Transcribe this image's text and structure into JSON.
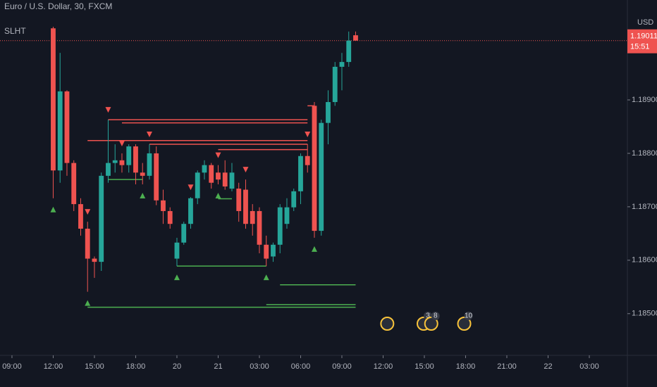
{
  "chart_data": {
    "type": "candlestick",
    "title": "Euro / U.S. Dollar, 30, FXCM",
    "indicator": "SLHT",
    "currency": "USD",
    "up_color": "#26a69a",
    "down_color": "#ef5350",
    "x": [
      6,
      7,
      8,
      9,
      10,
      11,
      12,
      13,
      14,
      15,
      16,
      17,
      18,
      19,
      20,
      21,
      22,
      23,
      24,
      25,
      26,
      27,
      28,
      29,
      30,
      31,
      32,
      33,
      34,
      35,
      36,
      37,
      38,
      39,
      40,
      41,
      42,
      43,
      44,
      45,
      46,
      47,
      48,
      49,
      50
    ],
    "open": [
      1.19034,
      1.18768,
      1.18916,
      1.18782,
      1.18705,
      1.18659,
      1.18603,
      1.18597,
      1.18758,
      1.18782,
      1.18787,
      1.18778,
      1.18813,
      1.18764,
      1.18758,
      1.188,
      1.18712,
      1.18692,
      1.18603,
      1.18633,
      1.18668,
      1.18716,
      1.18764,
      1.18778,
      1.18764,
      1.18764,
      1.18734,
      1.18734,
      1.18732,
      1.18692,
      1.18692,
      1.18629,
      1.18607,
      1.18629,
      1.18668,
      1.18699,
      1.18729,
      1.18795,
      1.18889,
      1.18655,
      1.18857,
      1.18896,
      1.18962,
      1.18971,
      1.19021
    ],
    "high": [
      1.19037,
      1.18988,
      1.18918,
      1.18787,
      1.18716,
      1.18672,
      1.18607,
      1.18764,
      1.18863,
      1.18817,
      1.188,
      1.18817,
      1.18817,
      1.18782,
      1.18817,
      1.18813,
      1.18732,
      1.18699,
      1.18642,
      1.18672,
      1.18718,
      1.18768,
      1.18787,
      1.18782,
      1.18778,
      1.18787,
      1.18782,
      1.18745,
      1.18751,
      1.18705,
      1.18699,
      1.18646,
      1.18633,
      1.18705,
      1.18716,
      1.18734,
      1.188,
      1.18817,
      1.18896,
      1.18863,
      1.18918,
      1.18971,
      1.18988,
      1.19028,
      1.19028
    ],
    "low": [
      1.18716,
      1.18745,
      1.18758,
      1.18692,
      1.18646,
      1.18541,
      1.18567,
      1.1858,
      1.18745,
      1.18764,
      1.18764,
      1.18764,
      1.18742,
      1.18742,
      1.18751,
      1.18703,
      1.18668,
      1.18659,
      1.18589,
      1.18629,
      1.18659,
      1.18705,
      1.18751,
      1.18734,
      1.18742,
      1.18732,
      1.18729,
      1.18672,
      1.18659,
      1.18646,
      1.18613,
      1.18589,
      1.18597,
      1.18613,
      1.18659,
      1.18692,
      1.18705,
      1.18764,
      1.18642,
      1.18646,
      1.18817,
      1.18889,
      1.18918,
      1.18962,
      1.19011
    ],
    "close": [
      1.18768,
      1.18916,
      1.18782,
      1.18705,
      1.18659,
      1.18603,
      1.18597,
      1.18758,
      1.18782,
      1.18787,
      1.18778,
      1.18813,
      1.18764,
      1.18758,
      1.188,
      1.18712,
      1.18692,
      1.18668,
      1.18633,
      1.18668,
      1.18716,
      1.18764,
      1.18778,
      1.18745,
      1.18751,
      1.18738,
      1.18764,
      1.18692,
      1.18668,
      1.18668,
      1.18629,
      1.18603,
      1.18629,
      1.18699,
      1.18699,
      1.18729,
      1.18795,
      1.18778,
      1.18655,
      1.18857,
      1.18896,
      1.18962,
      1.18971,
      1.19011,
      1.19011
    ],
    "levels": [
      {
        "price": 1.18863,
        "from": 14,
        "to": 43,
        "color": "#ef5350"
      },
      {
        "price": 1.18857,
        "from": 16,
        "to": 43,
        "color": "#ef5350"
      },
      {
        "price": 1.18824,
        "from": 11,
        "to": 43,
        "color": "#ef5350"
      },
      {
        "price": 1.18817,
        "from": 20,
        "to": 43,
        "color": "#ef5350"
      },
      {
        "price": 1.18807,
        "from": 30,
        "to": 43,
        "color": "#ef5350"
      },
      {
        "price": 1.18889,
        "from": 43,
        "to": 44,
        "color": "#ef5350"
      },
      {
        "price": 1.18751,
        "from": 14,
        "to": 19,
        "color": "#4caf50"
      },
      {
        "price": 1.18715,
        "from": 30,
        "to": 32,
        "color": "#4caf50"
      },
      {
        "price": 1.18589,
        "from": 24,
        "to": 37,
        "color": "#4caf50"
      },
      {
        "price": 1.18554,
        "from": 39,
        "to": 50,
        "color": "#4caf50"
      },
      {
        "price": 1.18517,
        "from": 37,
        "to": 50,
        "color": "#4caf50"
      },
      {
        "price": 1.18512,
        "from": 11,
        "to": 50,
        "color": "#4caf50"
      }
    ],
    "sell_signals": [
      11,
      14,
      16,
      20,
      26,
      30,
      34,
      43
    ],
    "buy_signals": [
      6,
      11,
      19,
      24,
      30,
      37,
      44
    ],
    "last_price": 1.19011,
    "countdown": "15:51",
    "events": [
      {
        "x": 54.6
      },
      {
        "x": 59.9,
        "count": 3
      },
      {
        "x": 61,
        "count": 8
      },
      {
        "x": 65.8,
        "count": 10
      }
    ],
    "xlim": [
      -1.74,
      89.54
    ],
    "ylim": [
      1.18422,
      1.19087
    ],
    "xticks": [
      {
        "value": 0,
        "label": "09:00"
      },
      {
        "value": 6,
        "label": "12:00"
      },
      {
        "value": 12,
        "label": "15:00"
      },
      {
        "value": 18,
        "label": "18:00"
      },
      {
        "value": 24,
        "label": "20"
      },
      {
        "value": 30,
        "label": "21"
      },
      {
        "value": 36,
        "label": "03:00"
      },
      {
        "value": 42,
        "label": "06:00"
      },
      {
        "value": 48,
        "label": "09:00"
      },
      {
        "value": 54,
        "label": "12:00"
      },
      {
        "value": 60,
        "label": "15:00"
      },
      {
        "value": 66,
        "label": "18:00"
      },
      {
        "value": 72,
        "label": "21:00"
      },
      {
        "value": 78,
        "label": "22"
      },
      {
        "value": 84,
        "label": "03:00"
      }
    ],
    "yticks": [
      {
        "value": 1.185,
        "label": "1.18500"
      },
      {
        "value": 1.186,
        "label": "1.18600"
      },
      {
        "value": 1.187,
        "label": "1.18700"
      },
      {
        "value": 1.188,
        "label": "1.18800"
      },
      {
        "value": 1.189,
        "label": "1.18900"
      }
    ]
  }
}
